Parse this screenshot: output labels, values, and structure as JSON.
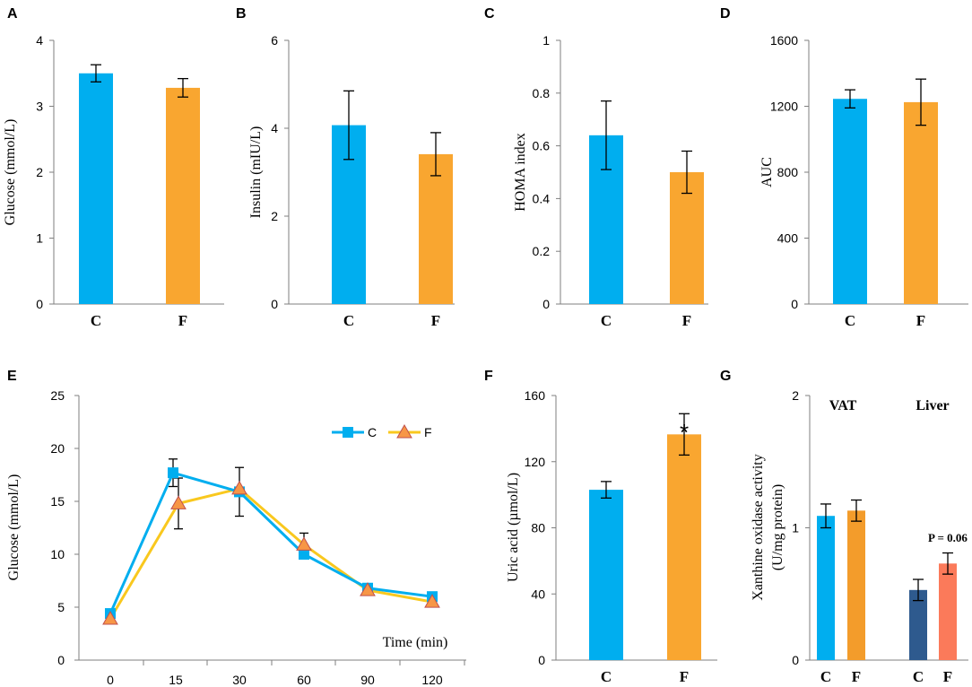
{
  "colors": {
    "C": "#00AEEF",
    "F": "#F9A630",
    "lineF": "#F9C81E",
    "markerF": "#F79646",
    "markerFEdge": "#C0504D",
    "VAT_C": "#00AEEF",
    "VAT_F": "#F39C2B",
    "Liver_C": "#2E5A8E",
    "Liver_F": "#FB7A5A",
    "axis": "#7F7F7F"
  },
  "chart_data": [
    {
      "id": "A",
      "panel_label": "A",
      "type": "bar",
      "categories": [
        "C",
        "F"
      ],
      "values": [
        3.5,
        3.28
      ],
      "errors": [
        0.13,
        0.14
      ],
      "ylabel": "Glucose (mmol/L)",
      "ylim": [
        0,
        4
      ],
      "yticks": [
        "0",
        "1",
        "2",
        "3",
        "4"
      ],
      "yticks_v": [
        0,
        1,
        2,
        3,
        4
      ]
    },
    {
      "id": "B",
      "panel_label": "B",
      "type": "bar",
      "categories": [
        "C",
        "F"
      ],
      "values": [
        4.07,
        3.41
      ],
      "errors": [
        0.78,
        0.49
      ],
      "ylabel": "Insulin (mIU/L)",
      "ylim": [
        0,
        6
      ],
      "yticks": [
        "0",
        "2",
        "4",
        "6"
      ],
      "yticks_v": [
        0,
        2,
        4,
        6
      ]
    },
    {
      "id": "C",
      "panel_label": "C",
      "type": "bar",
      "categories": [
        "C",
        "F"
      ],
      "values": [
        0.64,
        0.5
      ],
      "errors": [
        0.13,
        0.08
      ],
      "ylabel": "HOMA index",
      "ylim": [
        0,
        1
      ],
      "yticks": [
        "0",
        "0.2",
        "0.4",
        "0.6",
        "0.8",
        "1"
      ],
      "yticks_v": [
        0,
        0.2,
        0.4,
        0.6,
        0.8,
        1
      ]
    },
    {
      "id": "D",
      "panel_label": "D",
      "type": "bar",
      "categories": [
        "C",
        "F"
      ],
      "values": [
        1245,
        1225
      ],
      "errors": [
        55,
        140
      ],
      "ylabel": "AUC",
      "ylim": [
        0,
        1600
      ],
      "yticks": [
        "0",
        "400",
        "800",
        "1200",
        "1600"
      ],
      "yticks_v": [
        0,
        400,
        800,
        1200,
        1600
      ]
    },
    {
      "id": "E",
      "panel_label": "E",
      "type": "line",
      "x": [
        "0",
        "15",
        "30",
        "60",
        "90",
        "120"
      ],
      "series": [
        {
          "name": "C",
          "values": [
            4.4,
            17.7,
            15.9,
            10.0,
            6.8,
            6.0
          ],
          "errors": [
            0,
            1.3,
            2.3,
            0,
            0,
            0
          ]
        },
        {
          "name": "F",
          "values": [
            3.9,
            14.8,
            16.2,
            10.9,
            6.6,
            5.5
          ],
          "errors": [
            0,
            2.4,
            0,
            1.1,
            0,
            0
          ]
        }
      ],
      "ylabel": "Glucose (mmol/L)",
      "xlabel": "Time (min)",
      "ylim": [
        0,
        25
      ],
      "yticks": [
        "0",
        "5",
        "10",
        "15",
        "20",
        "25"
      ],
      "yticks_v": [
        0,
        5,
        10,
        15,
        20,
        25
      ]
    },
    {
      "id": "F",
      "panel_label": "F",
      "type": "bar",
      "categories": [
        "C",
        "F"
      ],
      "values": [
        103,
        136.5
      ],
      "errors": [
        5,
        12.5
      ],
      "ylabel": "Uric acid (µmol/L)",
      "ylim": [
        0,
        160
      ],
      "yticks": [
        "0",
        "40",
        "80",
        "120",
        "160"
      ],
      "yticks_v": [
        0,
        40,
        80,
        120,
        160
      ],
      "annotation": "*"
    },
    {
      "id": "G",
      "panel_label": "G",
      "type": "bar",
      "groups": [
        "VAT",
        "Liver"
      ],
      "categories": [
        "C",
        "F",
        "C",
        "F"
      ],
      "values": [
        1.09,
        1.13,
        0.53,
        0.73
      ],
      "errors": [
        0.09,
        0.08,
        0.08,
        0.08
      ],
      "ylabel": [
        "Xanthine oxidase activity",
        "(U/mg protein)"
      ],
      "ylim": [
        0,
        2
      ],
      "yticks": [
        "0",
        "1",
        "2"
      ],
      "yticks_v": [
        0,
        1,
        2
      ],
      "annotation": "P = 0.06"
    }
  ]
}
